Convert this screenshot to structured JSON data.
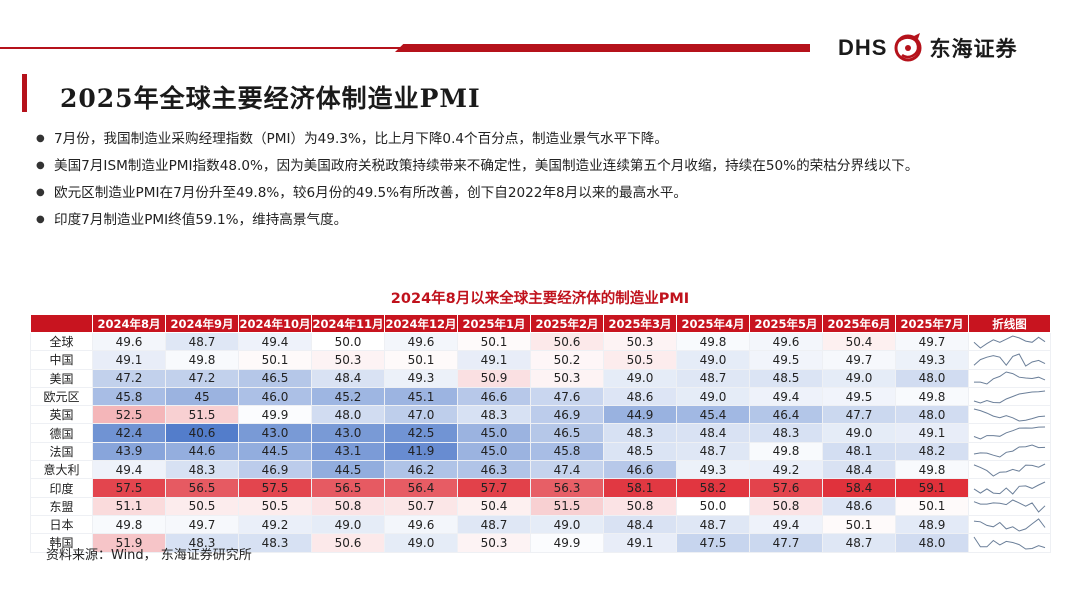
{
  "header": {
    "logo_abbr": "DHS",
    "logo_name": "东海证券",
    "accent_color": "#b5121b"
  },
  "title": "2025年全球主要经济体制造业PMI",
  "bullets": [
    "7月份，我国制造业采购经理指数（PMI）为49.3%，比上月下降0.4个百分点，制造业景气水平下降。",
    "美国7月ISM制造业PMI指数48.0%，因为美国政府关税政策持续带来不确定性，美国制造业连续第五个月收缩，持续在50%的荣枯分界线以下。",
    "欧元区制造业PMI在7月份升至49.8%，较6月份的49.5%有所改善，创下自2022年8月以来的最高水平。",
    "印度7月制造业PMI终值59.1%，维持高景气度。"
  ],
  "source": "资料来源：Wind， 东海证券研究所",
  "chart_data": {
    "type": "table",
    "title": "2024年8月以来全球主要经济体的制造业PMI",
    "columns": [
      "2024年8月",
      "2024年9月",
      "2024年10月",
      "2024年11月",
      "2024年12月",
      "2025年1月",
      "2025年2月",
      "2025年3月",
      "2025年4月",
      "2025年5月",
      "2025年6月",
      "2025年7月"
    ],
    "sparkline_header": "折线图",
    "color_scale": {
      "low_color": "#4a76c8",
      "mid_color": "#ffffff",
      "high_color": "#e0303a",
      "min": 40,
      "mid": 50,
      "max": 58.5
    },
    "rows": [
      {
        "name": "全球",
        "values": [
          "49.6",
          "48.7",
          "49.4",
          "50.0",
          "49.6",
          "50.1",
          "50.6",
          "50.3",
          "49.8",
          "49.6",
          "50.4",
          "49.7"
        ]
      },
      {
        "name": "中国",
        "values": [
          "49.1",
          "49.8",
          "50.1",
          "50.3",
          "50.1",
          "49.1",
          "50.2",
          "50.5",
          "49.0",
          "49.5",
          "49.7",
          "49.3"
        ]
      },
      {
        "name": "美国",
        "values": [
          "47.2",
          "47.2",
          "46.5",
          "48.4",
          "49.3",
          "50.9",
          "50.3",
          "49.0",
          "48.7",
          "48.5",
          "49.0",
          "48.0"
        ]
      },
      {
        "name": "欧元区",
        "values": [
          "45.8",
          "45",
          "46.0",
          "45.2",
          "45.1",
          "46.6",
          "47.6",
          "48.6",
          "49.0",
          "49.4",
          "49.5",
          "49.8"
        ]
      },
      {
        "name": "英国",
        "values": [
          "52.5",
          "51.5",
          "49.9",
          "48.0",
          "47.0",
          "48.3",
          "46.9",
          "44.9",
          "45.4",
          "46.4",
          "47.7",
          "48.0"
        ]
      },
      {
        "name": "德国",
        "values": [
          "42.4",
          "40.6",
          "43.0",
          "43.0",
          "42.5",
          "45.0",
          "46.5",
          "48.3",
          "48.4",
          "48.3",
          "49.0",
          "49.1"
        ]
      },
      {
        "name": "法国",
        "values": [
          "43.9",
          "44.6",
          "44.5",
          "43.1",
          "41.9",
          "45.0",
          "45.8",
          "48.5",
          "48.7",
          "49.8",
          "48.1",
          "48.2"
        ]
      },
      {
        "name": "意大利",
        "values": [
          "49.4",
          "48.3",
          "46.9",
          "44.5",
          "46.2",
          "46.3",
          "47.4",
          "46.6",
          "49.3",
          "49.2",
          "48.4",
          "49.8"
        ]
      },
      {
        "name": "印度",
        "values": [
          "57.5",
          "56.5",
          "57.5",
          "56.5",
          "56.4",
          "57.7",
          "56.3",
          "58.1",
          "58.2",
          "57.6",
          "58.4",
          "59.1"
        ]
      },
      {
        "name": "东盟",
        "values": [
          "51.1",
          "50.5",
          "50.5",
          "50.8",
          "50.7",
          "50.4",
          "51.5",
          "50.8",
          "50.0",
          "50.8",
          "48.6",
          "50.1"
        ]
      },
      {
        "name": "日本",
        "values": [
          "49.8",
          "49.7",
          "49.2",
          "49.0",
          "49.6",
          "48.7",
          "49.0",
          "48.4",
          "48.7",
          "49.4",
          "50.1",
          "48.9"
        ]
      },
      {
        "name": "韩国",
        "values": [
          "51.9",
          "48.3",
          "48.3",
          "50.6",
          "49.0",
          "50.3",
          "49.9",
          "49.1",
          "47.5",
          "47.7",
          "48.7",
          "48.0"
        ]
      }
    ]
  }
}
